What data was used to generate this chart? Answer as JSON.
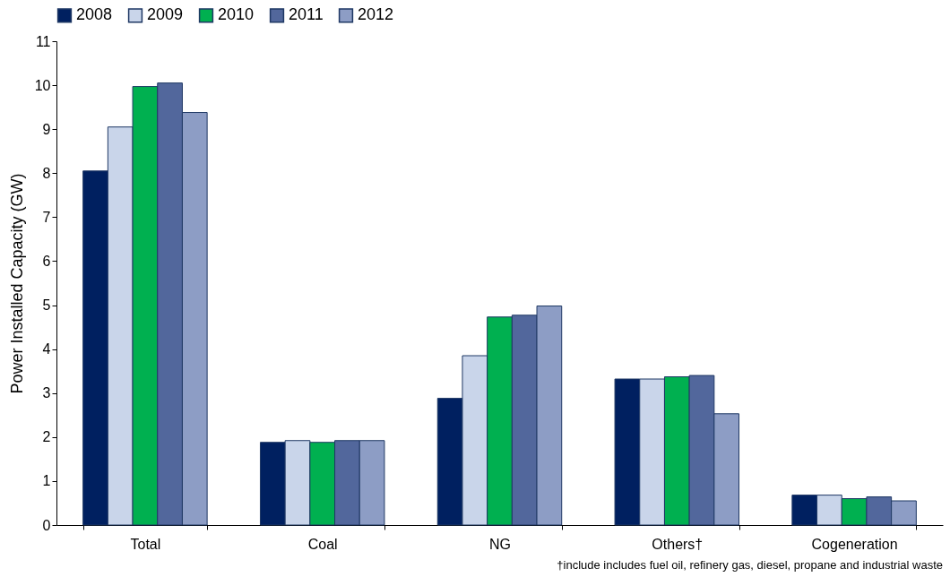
{
  "chart_data": {
    "type": "bar",
    "ylabel": "Power Installed Capacity (GW)",
    "categories": [
      "Total",
      "Coal",
      "NG",
      "Others†",
      "Cogeneration"
    ],
    "series": [
      {
        "name": "2008",
        "color": "#002060",
        "values": [
          8.05,
          1.88,
          2.88,
          3.32,
          0.68
        ]
      },
      {
        "name": "2009",
        "color": "#c9d5ea",
        "values": [
          9.05,
          1.92,
          3.85,
          3.32,
          0.68
        ]
      },
      {
        "name": "2010",
        "color": "#00b050",
        "values": [
          9.97,
          1.88,
          4.73,
          3.37,
          0.6
        ]
      },
      {
        "name": "2011",
        "color": "#52679c",
        "values": [
          10.05,
          1.92,
          4.77,
          3.4,
          0.64
        ]
      },
      {
        "name": "2012",
        "color": "#8d9dc5",
        "values": [
          9.38,
          1.92,
          4.98,
          2.53,
          0.55
        ]
      }
    ],
    "ylim": [
      0,
      11
    ],
    "yticks": [
      0,
      1,
      2,
      3,
      4,
      5,
      6,
      7,
      8,
      9,
      10,
      11
    ],
    "grid": false,
    "legend": "top",
    "annotations": [
      "†include includes fuel oil, refinery gas, diesel, propane and industrial waste"
    ]
  }
}
